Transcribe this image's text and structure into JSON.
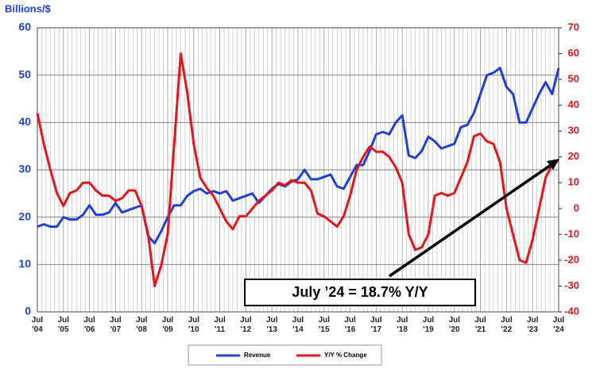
{
  "chart_data": {
    "type": "line",
    "y_axis_label": "Billions/$",
    "annotation": "July ’24 = 18.7% Y/Y",
    "xlim": [
      2004.5,
      2024.5
    ],
    "xticks": [
      {
        "value": 2004.5,
        "label": "Jul '04"
      },
      {
        "value": 2005.5,
        "label": "Jul '05"
      },
      {
        "value": 2006.5,
        "label": "Jul '06"
      },
      {
        "value": 2007.5,
        "label": "Jul '07"
      },
      {
        "value": 2008.5,
        "label": "Jul '08"
      },
      {
        "value": 2009.5,
        "label": "Jul '09"
      },
      {
        "value": 2010.5,
        "label": "Jul '10"
      },
      {
        "value": 2011.5,
        "label": "Jul '11"
      },
      {
        "value": 2012.5,
        "label": "Jul '12"
      },
      {
        "value": 2013.5,
        "label": "Jul '13"
      },
      {
        "value": 2014.5,
        "label": "Jul '14"
      },
      {
        "value": 2015.5,
        "label": "Jul '15"
      },
      {
        "value": 2016.5,
        "label": "Jul '16"
      },
      {
        "value": 2017.5,
        "label": "Jul '17"
      },
      {
        "value": 2018.5,
        "label": "Jul '18"
      },
      {
        "value": 2019.5,
        "label": "Jul '19"
      },
      {
        "value": 2020.5,
        "label": "Jul '20"
      },
      {
        "value": 2021.5,
        "label": "Jul '21"
      },
      {
        "value": 2022.5,
        "label": "Jul '22"
      },
      {
        "value": 2023.5,
        "label": "Jul '23"
      },
      {
        "value": 2024.5,
        "label": "Jul '24"
      }
    ],
    "ylim": [
      0,
      60
    ],
    "yticks": [
      0,
      10,
      20,
      30,
      40,
      50,
      60
    ],
    "y2lim": [
      -40,
      70
    ],
    "y2ticks": [
      -40,
      -30,
      -20,
      -10,
      0,
      10,
      20,
      30,
      40,
      50,
      60,
      70
    ],
    "grid": true,
    "legend": "bottom",
    "x": [
      2004.5,
      2004.75,
      2005,
      2005.25,
      2005.5,
      2005.75,
      2006,
      2006.25,
      2006.5,
      2006.75,
      2007,
      2007.25,
      2007.5,
      2007.75,
      2008,
      2008.25,
      2008.5,
      2008.75,
      2009,
      2009.25,
      2009.5,
      2009.75,
      2010,
      2010.25,
      2010.5,
      2010.75,
      2011,
      2011.25,
      2011.5,
      2011.75,
      2012,
      2012.25,
      2012.5,
      2012.75,
      2013,
      2013.25,
      2013.5,
      2013.75,
      2014,
      2014.25,
      2014.5,
      2014.75,
      2015,
      2015.25,
      2015.5,
      2015.75,
      2016,
      2016.25,
      2016.5,
      2016.75,
      2017,
      2017.25,
      2017.5,
      2017.75,
      2018,
      2018.25,
      2018.5,
      2018.75,
      2019,
      2019.25,
      2019.5,
      2019.75,
      2020,
      2020.25,
      2020.5,
      2020.75,
      2021,
      2021.25,
      2021.5,
      2021.75,
      2022,
      2022.25,
      2022.5,
      2022.75,
      2023,
      2023.25,
      2023.5,
      2023.75,
      2024,
      2024.25,
      2024.5
    ],
    "series": [
      {
        "name": "Revenue",
        "color": "#1f3fd6",
        "axis": "y",
        "values": [
          18,
          18.5,
          18,
          18,
          20,
          19.5,
          19.5,
          20.5,
          22.5,
          20.5,
          20.5,
          21,
          23,
          21,
          21.5,
          22,
          22.5,
          16,
          14.5,
          17,
          20,
          22.5,
          22.5,
          24.5,
          25.5,
          26,
          25,
          25.5,
          25,
          25.5,
          23.5,
          24,
          24.5,
          25,
          23,
          24.5,
          26,
          27,
          26.5,
          27.5,
          28,
          30,
          28,
          28,
          28.5,
          29,
          26.5,
          26,
          28.5,
          31,
          31,
          34,
          37.5,
          38,
          37.5,
          40,
          41.5,
          33,
          32.5,
          34,
          37,
          36,
          34.5,
          35,
          35.5,
          39,
          39.5,
          42,
          46,
          50,
          50.5,
          51.5,
          47.5,
          46,
          40,
          40,
          43,
          46,
          48.5,
          46,
          51.5
        ]
      },
      {
        "name": "Y/Y % Change",
        "color": "#e8141b",
        "axis": "y2",
        "values": [
          37,
          25,
          15,
          6,
          1,
          6,
          7,
          10,
          10,
          7,
          5,
          5,
          3,
          4,
          7,
          7,
          1,
          -10,
          -30,
          -22,
          -10,
          25,
          60,
          45,
          25,
          12,
          8,
          5,
          0,
          -5,
          -8,
          -3,
          -3,
          0,
          3,
          5,
          7,
          10,
          9,
          11,
          10,
          10,
          7,
          -2,
          -3,
          -5,
          -7,
          -3,
          5,
          15,
          20,
          24,
          22,
          22,
          20,
          16,
          10,
          -10,
          -16,
          -15,
          -10,
          5,
          6,
          5,
          6,
          12,
          18,
          28,
          29,
          26,
          25,
          18,
          0,
          -10,
          -20,
          -21,
          -12,
          0,
          12,
          17,
          18.7
        ]
      }
    ]
  }
}
